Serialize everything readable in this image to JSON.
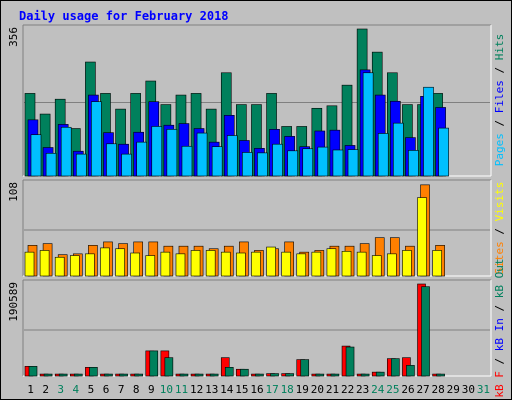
{
  "title": "Daily usage for February 2018",
  "colors": {
    "hits": "#00805c",
    "files": "#0000ff",
    "pages": "#00c0ff",
    "visits": "#ffff00",
    "sites": "#ff8000",
    "kb_in": "#ff0000",
    "kb_out": "#00805c",
    "weekend": "#00805c",
    "weekday": "#000000"
  },
  "chart_data": [
    {
      "type": "bar",
      "panel": "hits-files-pages",
      "ymax_label": "356",
      "ylim": [
        0,
        356
      ],
      "side_labels": [
        "Pages",
        "Files",
        "Hits"
      ],
      "x": [
        1,
        2,
        3,
        4,
        5,
        6,
        7,
        8,
        9,
        10,
        11,
        12,
        13,
        14,
        15,
        16,
        17,
        18,
        19,
        20,
        21,
        22,
        23,
        24,
        25,
        26,
        27,
        28
      ],
      "series": [
        {
          "name": "Hits",
          "values": [
            200,
            150,
            186,
            115,
            276,
            200,
            162,
            200,
            230,
            173,
            196,
            200,
            162,
            250,
            173,
            173,
            200,
            120,
            120,
            164,
            170,
            220,
            356,
            300,
            250,
            173,
            173,
            200
          ]
        },
        {
          "name": "Files",
          "values": [
            136,
            69,
            125,
            60,
            196,
            105,
            77,
            106,
            180,
            123,
            127,
            115,
            82,
            147,
            86,
            67,
            113,
            96,
            71,
            109,
            111,
            74,
            257,
            196,
            181,
            93,
            193,
            166
          ]
        },
        {
          "name": "Pages",
          "values": [
            100,
            55,
            118,
            53,
            180,
            78,
            53,
            82,
            120,
            113,
            72,
            104,
            71,
            98,
            57,
            56,
            77,
            61,
            66,
            70,
            63,
            64,
            250,
            103,
            128,
            62,
            215,
            116
          ]
        }
      ]
    },
    {
      "type": "bar",
      "panel": "visits-sites",
      "ymax_label": "108",
      "ylim": [
        0,
        108
      ],
      "side_labels": [
        "Sites",
        "Visits"
      ],
      "x": [
        1,
        2,
        3,
        4,
        5,
        6,
        7,
        8,
        9,
        10,
        11,
        12,
        13,
        14,
        15,
        16,
        17,
        18,
        19,
        20,
        21,
        22,
        23,
        24,
        25,
        26,
        27,
        28
      ],
      "series": [
        {
          "name": "Visits",
          "values": [
            28,
            30,
            22,
            24,
            26,
            33,
            32,
            27,
            24,
            28,
            26,
            30,
            30,
            28,
            27,
            28,
            34,
            28,
            26,
            28,
            32,
            29,
            28,
            24,
            26,
            30,
            92,
            30
          ]
        },
        {
          "name": "Sites",
          "values": [
            36,
            38,
            25,
            26,
            36,
            40,
            38,
            40,
            40,
            35,
            35,
            35,
            32,
            35,
            40,
            30,
            32,
            40,
            28,
            30,
            35,
            35,
            38,
            45,
            45,
            35,
            107,
            36
          ]
        }
      ]
    },
    {
      "type": "bar",
      "panel": "kb",
      "ymax_label": "190589",
      "ylim": [
        0,
        190589
      ],
      "side_labels": [
        "kB F",
        "kB In",
        "kB Out"
      ],
      "x": [
        1,
        2,
        3,
        4,
        5,
        6,
        7,
        8,
        9,
        10,
        11,
        12,
        13,
        14,
        15,
        16,
        17,
        18,
        19,
        20,
        21,
        22,
        23,
        24,
        25,
        26,
        27,
        28
      ],
      "series": [
        {
          "name": "kB In",
          "values": [
            20000,
            4000,
            4000,
            4000,
            18000,
            4000,
            4000,
            4000,
            52000,
            52000,
            4000,
            4000,
            4000,
            38000,
            14000,
            4000,
            5000,
            5000,
            34000,
            4000,
            4000,
            62000,
            4000,
            8000,
            36000,
            38000,
            190589,
            4000
          ]
        },
        {
          "name": "kB Out",
          "values": [
            20000,
            4000,
            4000,
            4000,
            18000,
            4000,
            4000,
            4000,
            52000,
            38000,
            4000,
            4000,
            4000,
            18000,
            14000,
            4000,
            5000,
            5000,
            34000,
            4000,
            4000,
            60000,
            4000,
            8000,
            36000,
            22000,
            185000,
            4000
          ]
        }
      ]
    }
  ],
  "x_axis": {
    "days": [
      1,
      2,
      3,
      4,
      5,
      6,
      7,
      8,
      9,
      10,
      11,
      12,
      13,
      14,
      15,
      16,
      17,
      18,
      19,
      20,
      21,
      22,
      23,
      24,
      25,
      26,
      27,
      28,
      29,
      30,
      31
    ],
    "weekend_days": [
      3,
      4,
      10,
      11,
      17,
      18,
      24,
      25,
      31
    ]
  }
}
